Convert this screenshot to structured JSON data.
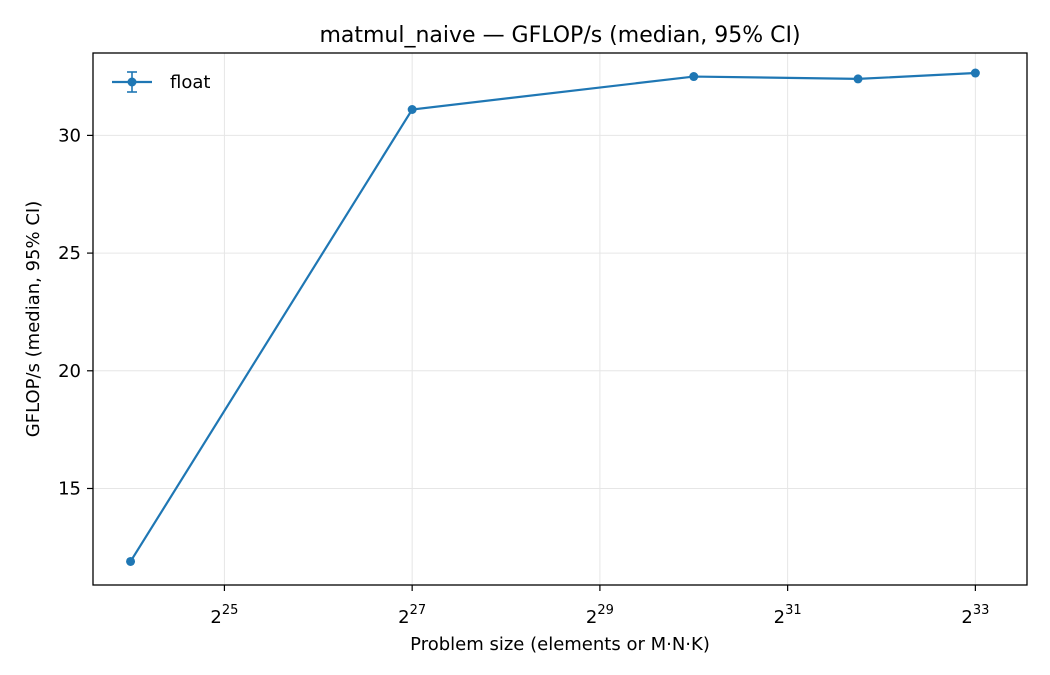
{
  "chart_data": {
    "type": "line",
    "title": "matmul_naive — GFLOP/s (median, 95% CI)",
    "xlabel": "Problem size (elements or M·N·K)",
    "ylabel": "GFLOP/s (median, 95% CI)",
    "xscale": "log2",
    "xlim_log2": [
      23.6,
      33.55
    ],
    "ylim": [
      10.9,
      33.5
    ],
    "xticks": [
      {
        "base": "2",
        "exp": "25",
        "log2": 25
      },
      {
        "base": "2",
        "exp": "27",
        "log2": 27
      },
      {
        "base": "2",
        "exp": "29",
        "log2": 29
      },
      {
        "base": "2",
        "exp": "31",
        "log2": 31
      },
      {
        "base": "2",
        "exp": "33",
        "log2": 33
      }
    ],
    "yticks": [
      15,
      20,
      25,
      30
    ],
    "grid": true,
    "legend_position": "top-left",
    "series": [
      {
        "name": "float",
        "color": "#1f77b4",
        "marker": "circle",
        "error_bars": true,
        "points": [
          {
            "log2x": 24.0,
            "y": 11.9
          },
          {
            "log2x": 27.0,
            "y": 31.1
          },
          {
            "log2x": 30.0,
            "y": 32.5
          },
          {
            "log2x": 31.75,
            "y": 32.4
          },
          {
            "log2x": 33.0,
            "y": 32.65
          }
        ]
      }
    ]
  }
}
